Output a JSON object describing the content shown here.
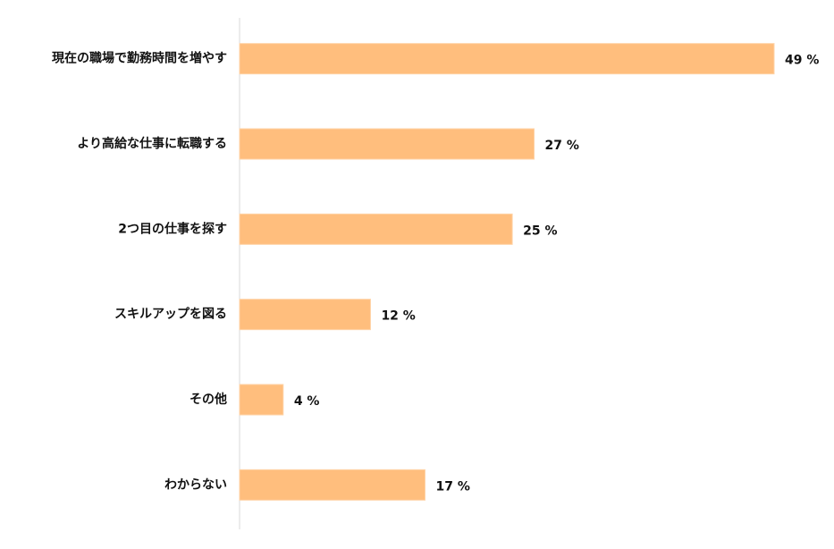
{
  "chart_data": {
    "type": "bar",
    "categories": [
      "現在の職場で勤務時間を増やす",
      "より高給な仕事に転職する",
      "2つ目の仕事を探す",
      "スキルアップを図る",
      "その他",
      "わからない"
    ],
    "values": [
      49,
      27,
      25,
      12,
      4,
      17
    ],
    "value_labels": [
      "49 %",
      "27 %",
      "25 %",
      "12 %",
      "4 %",
      "17 %"
    ],
    "color": "#ffbe7d"
  }
}
